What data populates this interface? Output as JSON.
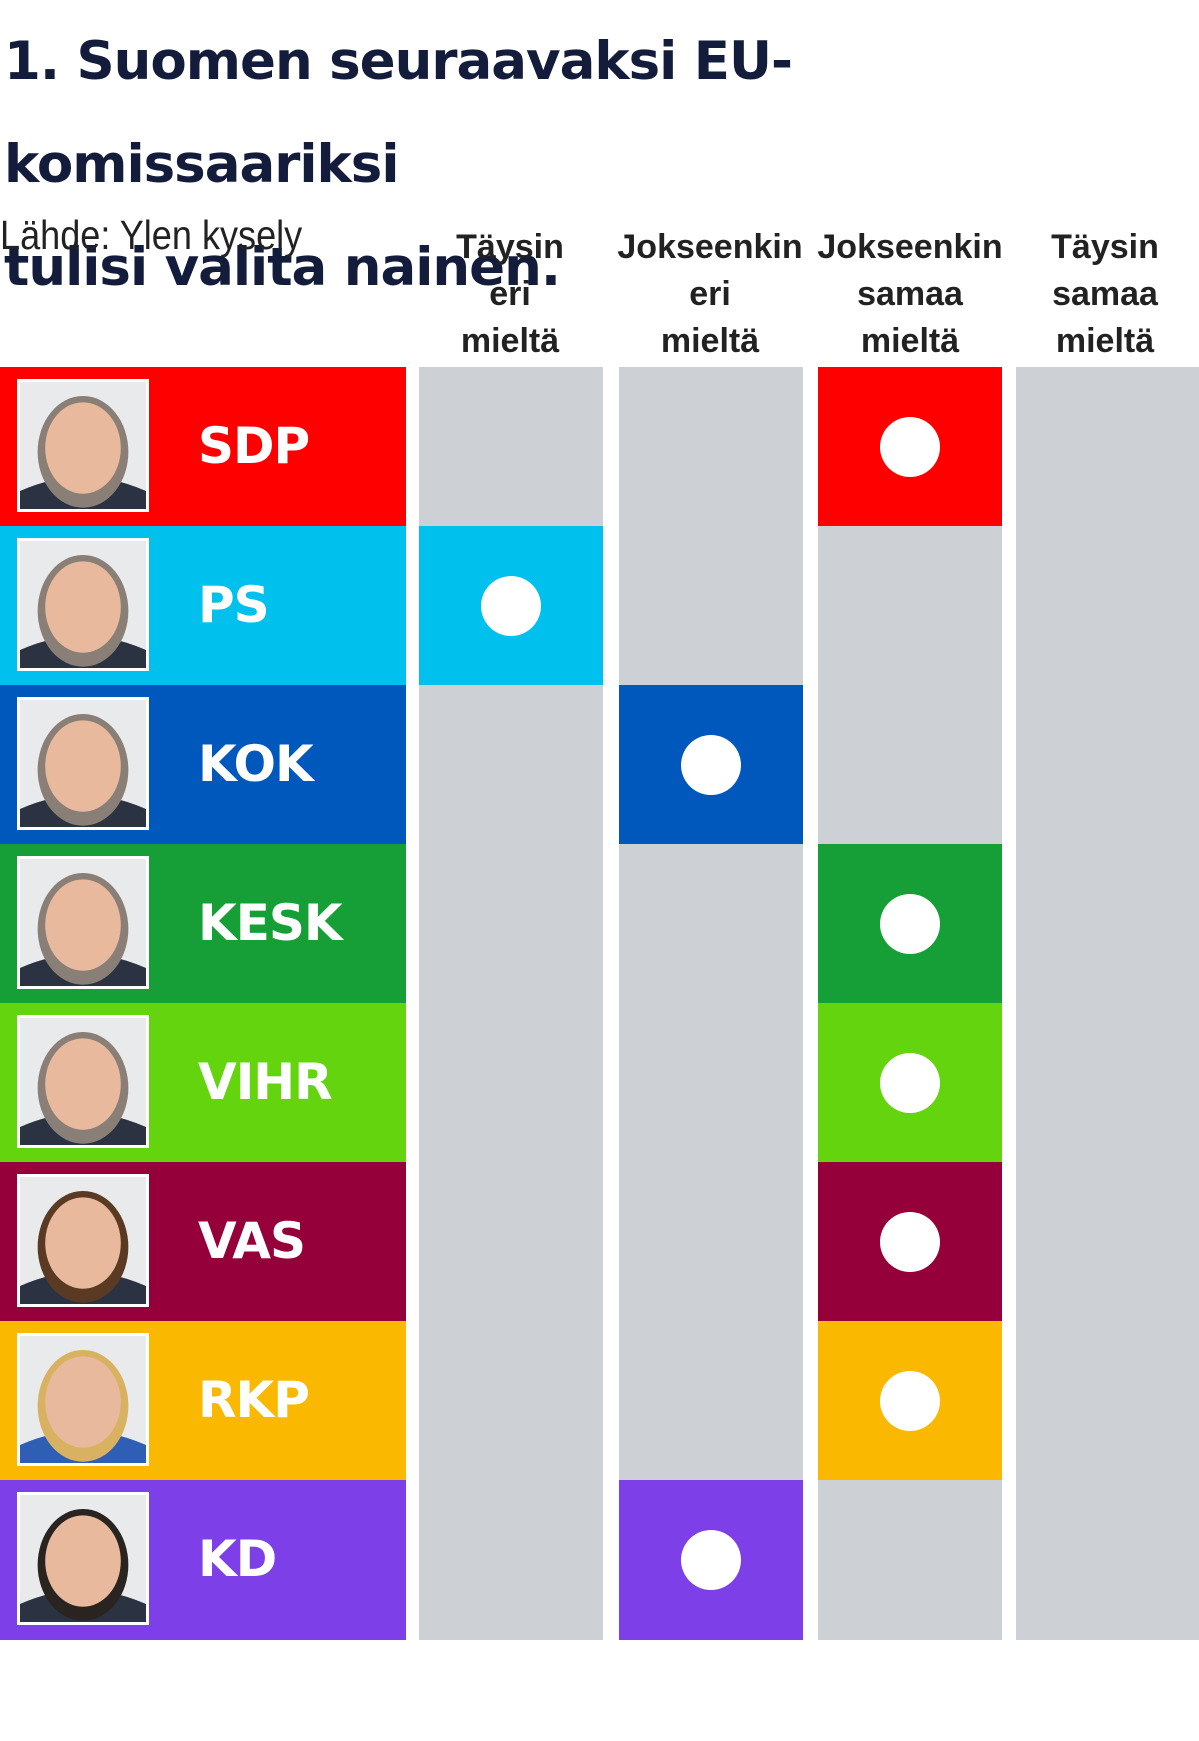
{
  "title_line1": "1. Suomen seuraavaksi EU-komissaariksi",
  "title_line2": "tulisi valita nainen.",
  "source": "Lähde: Ylen kysely",
  "columns": [
    {
      "line1": "Täysin",
      "line2": "eri",
      "line3": "mieltä"
    },
    {
      "line1": "Jokseenkin",
      "line2": "eri",
      "line3": "mieltä"
    },
    {
      "line1": "Jokseenkin",
      "line2": "samaa",
      "line3": "mieltä"
    },
    {
      "line1": "Täysin",
      "line2": "samaa",
      "line3": "mieltä"
    }
  ],
  "empty_cell_color": "#cdd0d4",
  "dot_color": "#ffffff",
  "chart_data": {
    "type": "table",
    "title": "1. Suomen seuraavaksi EU-komissaariksi tulisi valita nainen.",
    "categories": [
      "Täysin eri mieltä",
      "Jokseenkin eri mieltä",
      "Jokseenkin samaa mieltä",
      "Täysin samaa mieltä"
    ],
    "rows": [
      {
        "party": "SDP",
        "color": "#ff0000",
        "answer": 2
      },
      {
        "party": "PS",
        "color": "#00c0ee",
        "answer": 0
      },
      {
        "party": "KOK",
        "color": "#0058bd",
        "answer": 1
      },
      {
        "party": "KESK",
        "color": "#169f36",
        "answer": 2
      },
      {
        "party": "VIHR",
        "color": "#64d40e",
        "answer": 2
      },
      {
        "party": "VAS",
        "color": "#96003a",
        "answer": 2
      },
      {
        "party": "RKP",
        "color": "#fbb800",
        "answer": 2
      },
      {
        "party": "KD",
        "color": "#7d3fe7",
        "answer": 1
      }
    ]
  }
}
